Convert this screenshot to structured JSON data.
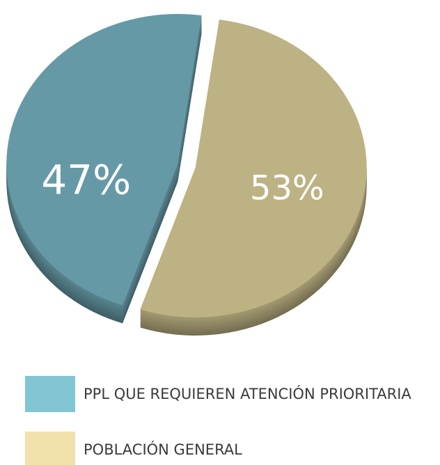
{
  "chart_data": {
    "type": "pie",
    "categories": [
      "PPL QUE REQUIEREN ATENCIÓN PRIORITARIA",
      "POBLACIÓN GENERAL"
    ],
    "values": [
      47,
      53
    ],
    "value_labels": [
      "47%",
      "53%"
    ],
    "colors": [
      "#6699a6",
      "#bdb283"
    ],
    "legend_colors": [
      "#82c5d3",
      "#f1e2ab"
    ]
  }
}
